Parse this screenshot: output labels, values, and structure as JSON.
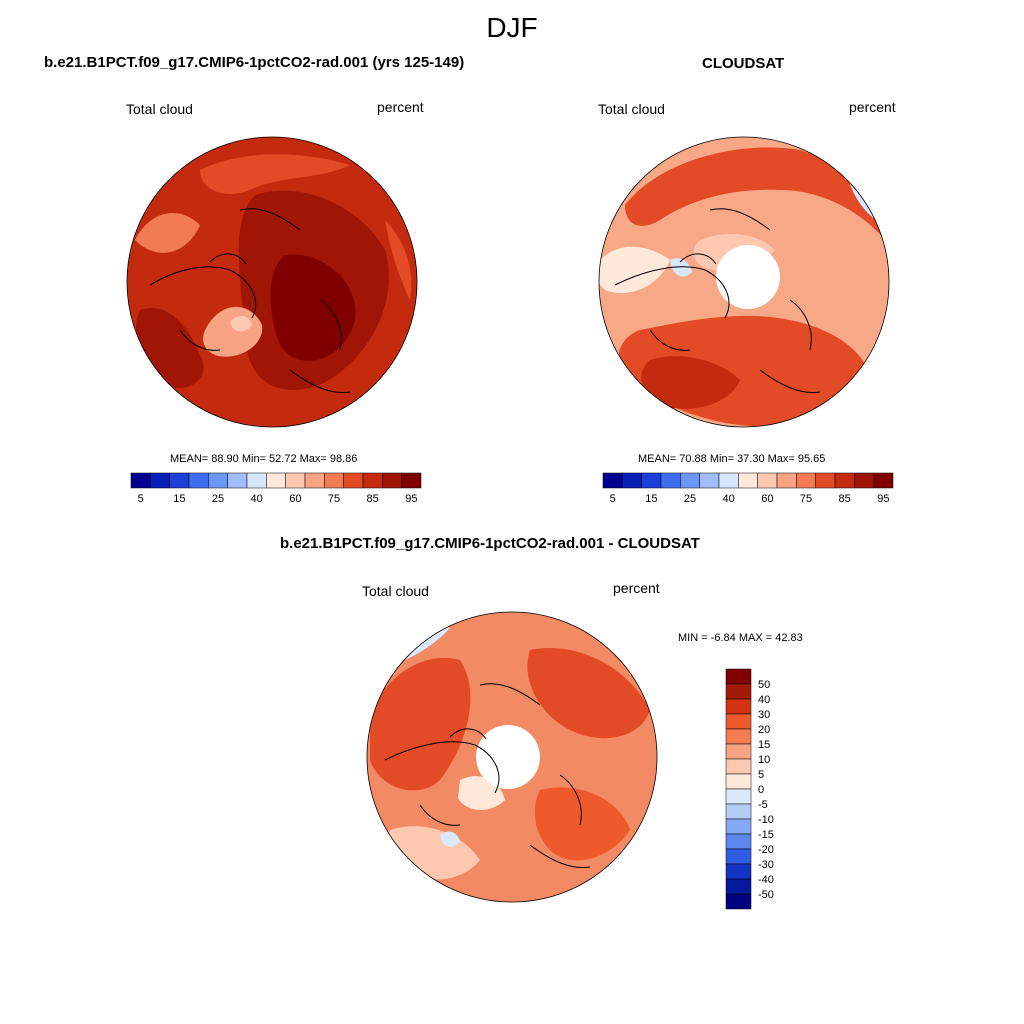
{
  "figure": {
    "season": "DJF",
    "bottom_title": "b.e21.B1PCT.f09_g17.CMIP6-1pctCO2-rad.001 - CLOUDSAT"
  },
  "panels": [
    {
      "title": "b.e21.B1PCT.f09_g17.CMIP6-1pctCO2-rad.001 (yrs 125-149)",
      "left_label": "Total cloud",
      "right_label": "percent",
      "stats": "MEAN=  88.90  Min=  52.72  Max=  98.86",
      "background_color": "#c42a0e",
      "has_pole_hole": false
    },
    {
      "title": "CLOUDSAT",
      "left_label": "Total cloud",
      "right_label": "percent",
      "stats": "MEAN=  70.88  Min=  37.30  Max=  95.65",
      "background_color": "#f7a887",
      "has_pole_hole": true
    },
    {
      "title": "",
      "left_label": "Total cloud",
      "right_label": "percent",
      "stats": "MIN =  -6.84 MAX =  42.83",
      "background_color": "#f28a63",
      "has_pole_hole": true
    }
  ],
  "horizontal_colorbar": {
    "ticks": [
      "5",
      "15",
      "25",
      "40",
      "60",
      "75",
      "85",
      "95"
    ],
    "colors": [
      "#00008f",
      "#0a1fb8",
      "#1c3fd8",
      "#3f6ef0",
      "#6d97f5",
      "#a0bdf8",
      "#d6e6fb",
      "#fde8da",
      "#fcc8b0",
      "#f8a384",
      "#f27a55",
      "#e34a26",
      "#c42a0e",
      "#a01505",
      "#800000"
    ]
  },
  "vertical_colorbar": {
    "ticks": [
      "50",
      "40",
      "30",
      "20",
      "15",
      "10",
      "5",
      "0",
      "-5",
      "-10",
      "-15",
      "-20",
      "-30",
      "-40",
      "-50"
    ],
    "colors": [
      "#800000",
      "#a31a06",
      "#d1320f",
      "#ef5a2d",
      "#f57c52",
      "#f8a384",
      "#fcc8b0",
      "#fde8da",
      "#dce9fb",
      "#b4cdf7",
      "#86a9f3",
      "#5a86ee",
      "#2e5ee3",
      "#1233c4",
      "#04199e",
      "#000080"
    ]
  },
  "chart_data": {
    "type": "heatmap",
    "title": "DJF",
    "maps": [
      {
        "name": "b.e21.B1PCT.f09_g17.CMIP6-1pctCO2-rad.001 (yrs 125-149)",
        "variable": "Total cloud",
        "units": "percent",
        "mean": 88.9,
        "min": 52.72,
        "max": 98.86
      },
      {
        "name": "CLOUDSAT",
        "variable": "Total cloud",
        "units": "percent",
        "mean": 70.88,
        "min": 37.3,
        "max": 95.65
      },
      {
        "name": "b.e21.B1PCT.f09_g17.CMIP6-1pctCO2-rad.001 - CLOUDSAT",
        "variable": "Total cloud",
        "units": "percent",
        "min": -6.84,
        "max": 42.83
      }
    ],
    "levels_absolute": [
      5,
      15,
      25,
      40,
      60,
      75,
      85,
      95
    ],
    "levels_difference": [
      50,
      40,
      30,
      20,
      15,
      10,
      5,
      0,
      -5,
      -10,
      -15,
      -20,
      -30,
      -40,
      -50
    ]
  }
}
